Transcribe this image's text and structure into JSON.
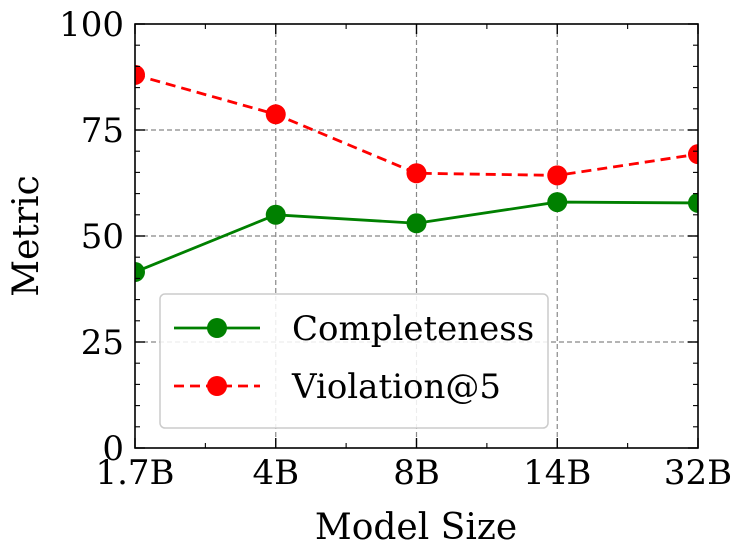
{
  "chart_data": {
    "type": "line",
    "title": "",
    "xlabel": "Model Size",
    "ylabel": "Metric",
    "categories": [
      "1.7B",
      "4B",
      "8B",
      "14B",
      "32B"
    ],
    "ylim": [
      0,
      100
    ],
    "yticks": [
      0,
      25,
      50,
      75,
      100
    ],
    "grid": true,
    "legend_position": "lower-center",
    "series": [
      {
        "name": "Completeness",
        "values": [
          41.5,
          55.0,
          53.0,
          58.0,
          57.8
        ],
        "color": "#008000",
        "line_style": "solid",
        "marker": "circle"
      },
      {
        "name": "Violation@5",
        "values": [
          88.0,
          78.7,
          64.8,
          64.3,
          69.3
        ],
        "color": "#ff0000",
        "line_style": "dashed",
        "marker": "circle"
      }
    ]
  }
}
